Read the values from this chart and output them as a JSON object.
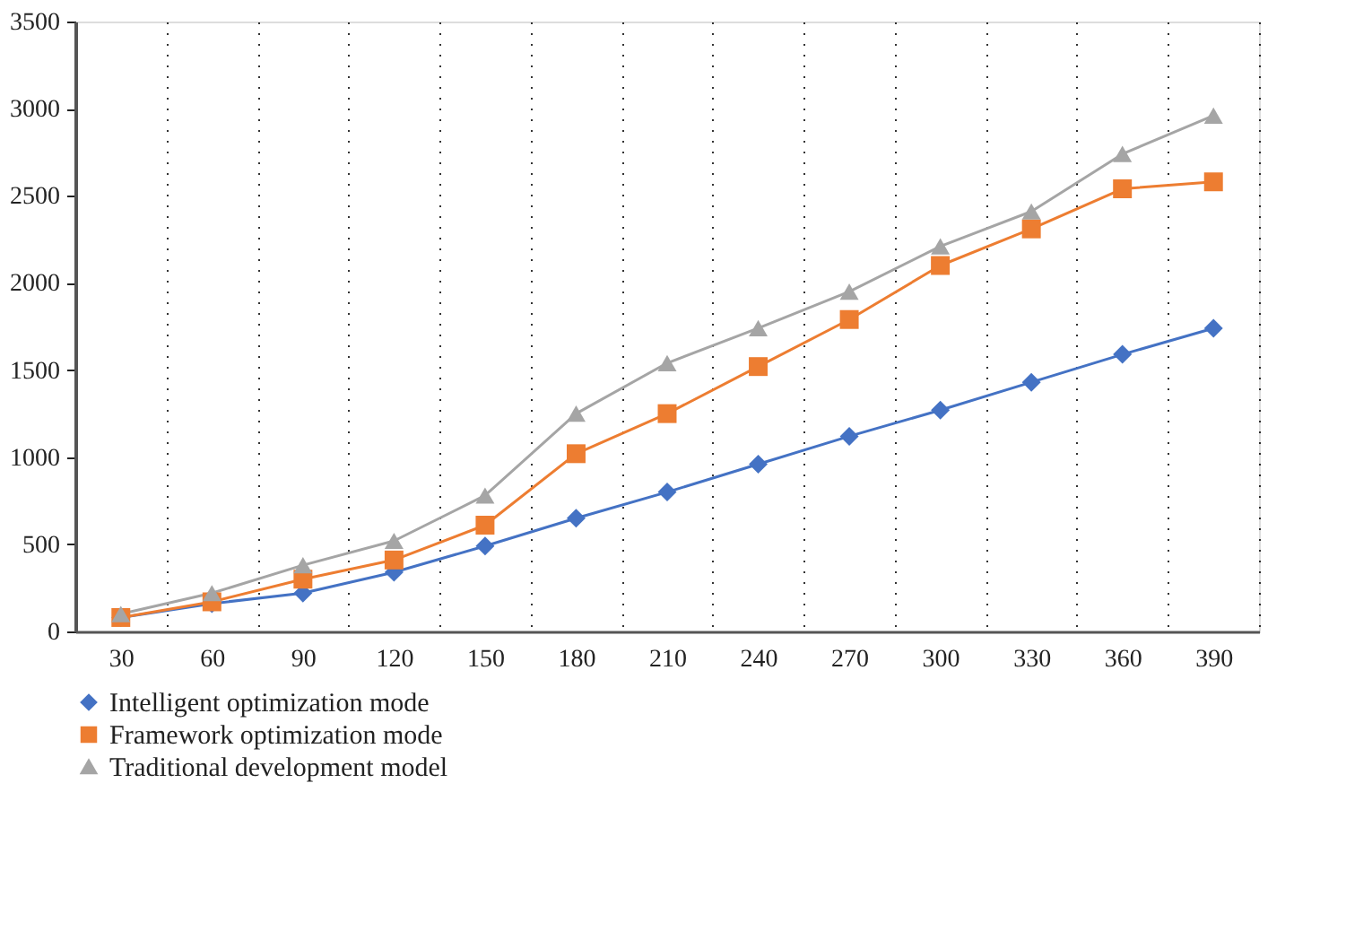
{
  "chart_data": {
    "type": "line",
    "categories": [
      "30",
      "60",
      "90",
      "120",
      "150",
      "180",
      "210",
      "240",
      "270",
      "300",
      "330",
      "360",
      "390"
    ],
    "series": [
      {
        "name": "Intelligent optimization mode",
        "color": "#4472c4",
        "marker": "diamond",
        "values": [
          80,
          160,
          220,
          340,
          490,
          650,
          800,
          960,
          1120,
          1270,
          1430,
          1590,
          1740
        ]
      },
      {
        "name": "Framework optimization mode",
        "color": "#ed7d31",
        "marker": "square",
        "values": [
          80,
          170,
          300,
          410,
          610,
          1020,
          1250,
          1520,
          1790,
          2100,
          2310,
          2540,
          2580
        ]
      },
      {
        "name": "Traditional development model",
        "color": "#a5a5a5",
        "marker": "triangle",
        "values": [
          100,
          220,
          380,
          520,
          780,
          1250,
          1540,
          1740,
          1950,
          2210,
          2410,
          2740,
          2960
        ]
      }
    ],
    "ylim": [
      0,
      3500
    ],
    "yticks": [
      0,
      500,
      1000,
      1500,
      2000,
      2500,
      3000,
      3500
    ],
    "grid": "x",
    "legend": "bottom",
    "line_style": "solid"
  }
}
